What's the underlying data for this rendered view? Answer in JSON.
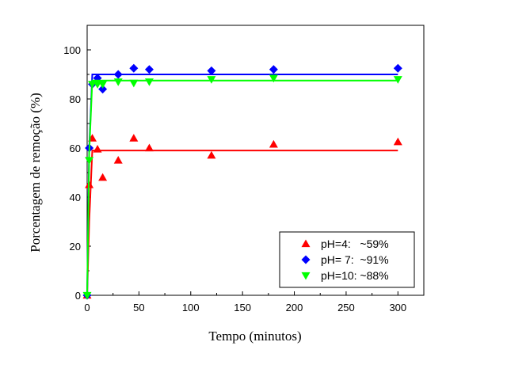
{
  "chart_data": {
    "type": "scatter",
    "title": "",
    "xlabel": "Tempo (minutos)",
    "ylabel": "Porcentagem de remoção (%)",
    "xlim": [
      0,
      325
    ],
    "ylim": [
      0,
      110
    ],
    "xticks": [
      0,
      50,
      100,
      150,
      200,
      250,
      300
    ],
    "yticks": [
      0,
      20,
      40,
      60,
      80,
      100
    ],
    "grid": false,
    "legend_position": "bottom-right",
    "series": [
      {
        "name": "pH=4:   ~59%",
        "color": "#ff0000",
        "marker": "triangle-up",
        "x": [
          0,
          2,
          5,
          10,
          15,
          30,
          45,
          60,
          120,
          180,
          300
        ],
        "y": [
          0,
          45,
          64,
          59.5,
          48,
          55,
          64,
          60,
          57,
          61.5,
          62.5
        ],
        "fit": [
          [
            0,
            0
          ],
          [
            2,
            30
          ],
          [
            5,
            59
          ],
          [
            300,
            59
          ]
        ]
      },
      {
        "name": "pH= 7:  ~91%",
        "color": "#0000ff",
        "marker": "diamond",
        "x": [
          0,
          2,
          5,
          10,
          15,
          30,
          45,
          60,
          120,
          180,
          300
        ],
        "y": [
          0,
          60,
          86,
          88.5,
          84,
          90,
          92.5,
          92,
          91.5,
          92,
          92.5
        ],
        "fit": [
          [
            0,
            0
          ],
          [
            2,
            60
          ],
          [
            5,
            90
          ],
          [
            300,
            90
          ]
        ]
      },
      {
        "name": "pH=10: ~88%",
        "color": "#00ff00",
        "marker": "triangle-down",
        "x": [
          0,
          2,
          5,
          10,
          15,
          30,
          45,
          60,
          120,
          180,
          300
        ],
        "y": [
          0,
          55,
          86,
          86,
          86,
          87,
          86.5,
          87,
          88,
          88.5,
          88
        ],
        "fit": [
          [
            0,
            0
          ],
          [
            2,
            58
          ],
          [
            5,
            87.5
          ],
          [
            300,
            87.5
          ]
        ]
      }
    ]
  }
}
